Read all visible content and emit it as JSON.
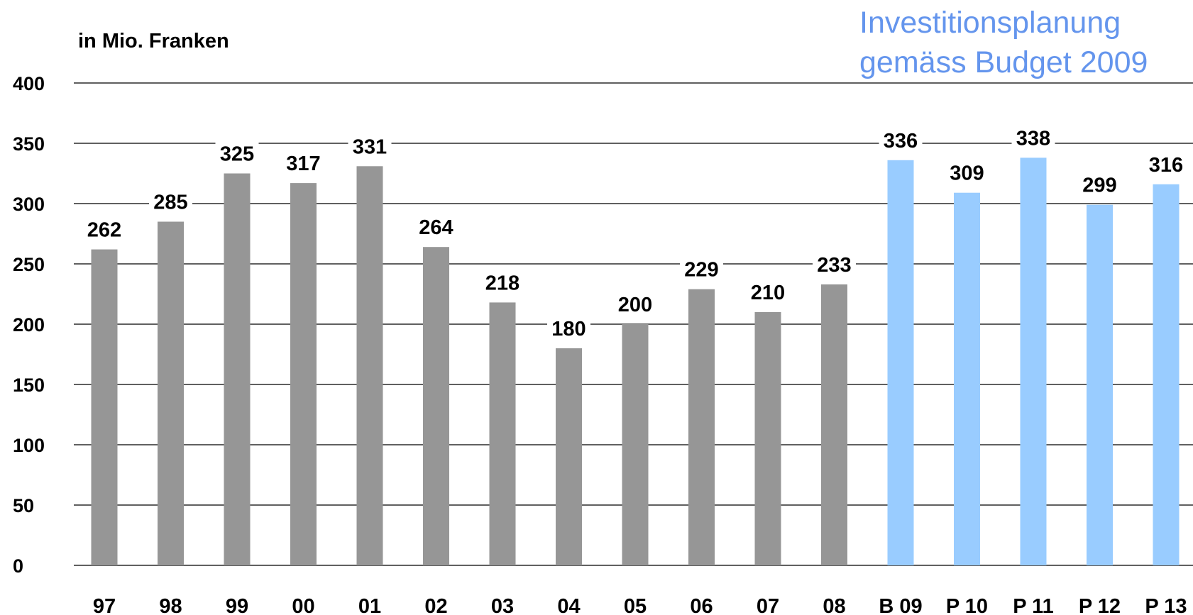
{
  "chart_data": {
    "type": "bar",
    "ylabel": "in Mio. Franken",
    "annotation": [
      "Investitionsplanung",
      "gemäss Budget 2009"
    ],
    "categories": [
      "97",
      "98",
      "99",
      "00",
      "01",
      "02",
      "03",
      "04",
      "05",
      "06",
      "07",
      "08",
      "B 09",
      "P 10",
      "P 11",
      "P 12",
      "P 13"
    ],
    "values": [
      262,
      285,
      325,
      317,
      331,
      264,
      218,
      180,
      200,
      229,
      210,
      233,
      336,
      309,
      338,
      299,
      316
    ],
    "bar_colors": [
      "#969696",
      "#969696",
      "#969696",
      "#969696",
      "#969696",
      "#969696",
      "#969696",
      "#969696",
      "#969696",
      "#969696",
      "#969696",
      "#969696",
      "#99CCFF",
      "#99CCFF",
      "#99CCFF",
      "#99CCFF",
      "#99CCFF"
    ],
    "ylim": [
      0,
      400
    ],
    "yticks": [
      0,
      50,
      100,
      150,
      200,
      250,
      300,
      350,
      400
    ],
    "grid": true,
    "legend": "none",
    "colors": {
      "actual": "#969696",
      "planned": "#99CCFF",
      "annotation": "#6495ED"
    }
  }
}
